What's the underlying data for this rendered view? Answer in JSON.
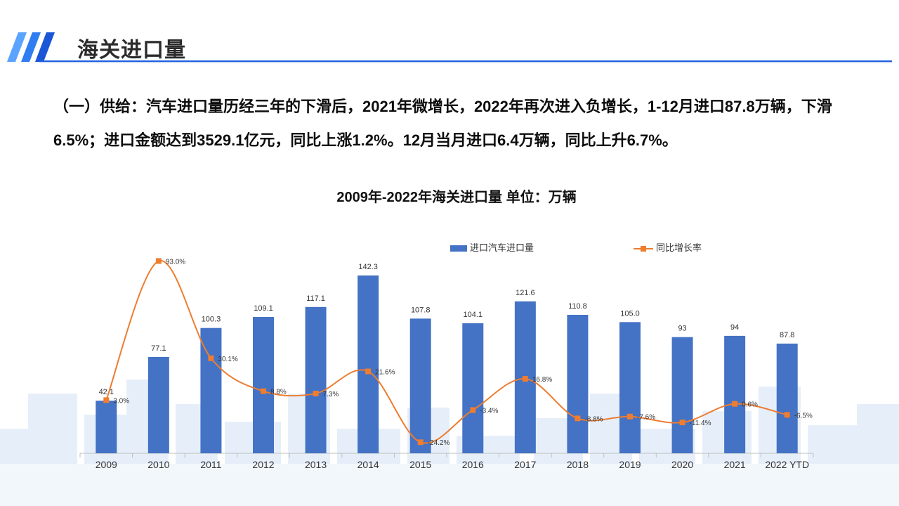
{
  "header": {
    "title": "海关进口量"
  },
  "intro": {
    "text": "（一）供给：汽车进口量历经三年的下滑后，2021年微增长，2022年再次进入负增长，1-12月进口87.8万辆，下滑6.5%；进口金额达到3529.1亿元，同比上涨1.2%。12月当月进口6.4万辆，同比上升6.7%。"
  },
  "colors": {
    "bar": "#4472c4",
    "line": "#ed7d31",
    "accent": "#1f5fe0"
  },
  "chart_data": {
    "type": "bar+line",
    "title": "2009年-2022年海关进口量 单位：万辆",
    "categories": [
      "2009",
      "2010",
      "2011",
      "2012",
      "2013",
      "2014",
      "2015",
      "2016",
      "2017",
      "2018",
      "2019",
      "2020",
      "2021",
      "2022 YTD"
    ],
    "series": [
      {
        "name": "进口汽车进口量",
        "type": "bar",
        "values": [
          42.1,
          77.1,
          100.3,
          109.1,
          117.1,
          142.3,
          107.8,
          104.1,
          121.6,
          110.8,
          105.0,
          93,
          94,
          87.8
        ],
        "labels": [
          "42.1",
          "77.1",
          "100.3",
          "109.1",
          "117.1",
          "142.3",
          "107.8",
          "104.1",
          "121.6",
          "110.8",
          "105.0",
          "93",
          "94",
          "87.8"
        ]
      },
      {
        "name": "同比增长率",
        "type": "line",
        "values": [
          3.0,
          93.0,
          30.1,
          8.8,
          7.3,
          21.6,
          -24.2,
          -3.4,
          16.8,
          -8.8,
          -7.6,
          -11.4,
          0.6,
          -6.5
        ],
        "labels": [
          "3.0%",
          "93.0%",
          "30.1%",
          "8.8%",
          "7.3%",
          "21.6%",
          "-24.2%",
          "-3.4%",
          "16.8%",
          "-8.8%",
          "-7.6%",
          "-11.4%",
          "0.6%",
          "-6.5%"
        ]
      }
    ],
    "bar_axis_range": [
      0,
      150
    ],
    "line_axis_range": [
      -40,
      100
    ],
    "axes_visible": false,
    "grid": false,
    "legend_position": "top"
  }
}
